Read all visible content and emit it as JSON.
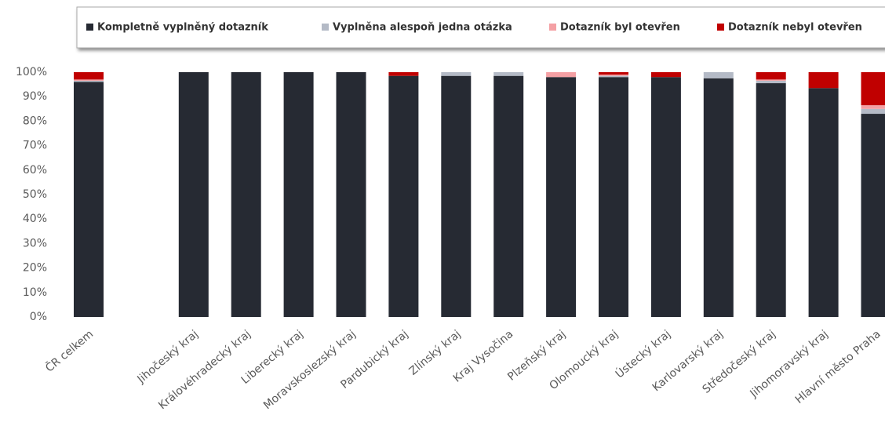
{
  "chart_data": {
    "type": "stacked_bar",
    "categories": [
      "ČR celkem",
      null,
      "Jihočeský kraj",
      "Královéhradecký kraj",
      "Liberecký kraj",
      "Moravskoslezský kraj",
      "Pardubický kraj",
      "Zlínský kraj",
      "Kraj Vysočina",
      "Plzeňský kraj",
      "Olomoucký kraj",
      "Ústecký kraj",
      "Karlovarský kraj",
      "Středočeský kraj",
      "Jihomoravský kraj",
      "Hlavní město Praha"
    ],
    "series": [
      {
        "name": "Kompletně vyplněný dotazník",
        "color": "#262a33",
        "values": [
          96,
          null,
          100,
          100,
          100,
          100,
          98.5,
          98.5,
          98.5,
          98,
          98,
          98,
          97.5,
          95.5,
          93.5,
          83
        ]
      },
      {
        "name": "Vyplněna alespoň jedna otázka",
        "color": "#b4bac6",
        "values": [
          0.5,
          null,
          0,
          0,
          0,
          0,
          0,
          1.5,
          1.5,
          0,
          0.5,
          0,
          2.5,
          1,
          0,
          2
        ]
      },
      {
        "name": "Dotazník byl otevřen",
        "color": "#f4a0a4",
        "values": [
          0.5,
          null,
          0,
          0,
          0,
          0,
          0,
          0,
          0,
          2,
          0.5,
          0,
          0,
          0.5,
          0,
          1.5
        ]
      },
      {
        "name": "Dotazník nebyl otevřen",
        "color": "#c00000",
        "values": [
          3,
          null,
          0,
          0,
          0,
          0,
          1.5,
          0,
          0,
          0,
          1,
          2,
          0,
          3,
          6.5,
          13.5
        ]
      }
    ],
    "ylim": [
      0,
      100
    ],
    "yticks": [
      {
        "value": 0,
        "label": "0%"
      },
      {
        "value": 10,
        "label": "10%"
      },
      {
        "value": 20,
        "label": "20%"
      },
      {
        "value": 30,
        "label": "30%"
      },
      {
        "value": 40,
        "label": "40%"
      },
      {
        "value": 50,
        "label": "50%"
      },
      {
        "value": 60,
        "label": "60%"
      },
      {
        "value": 70,
        "label": "70%"
      },
      {
        "value": 80,
        "label": "80%"
      },
      {
        "value": 90,
        "label": "90%"
      },
      {
        "value": 100,
        "label": "100%"
      }
    ],
    "grid": false,
    "legend": "top"
  }
}
